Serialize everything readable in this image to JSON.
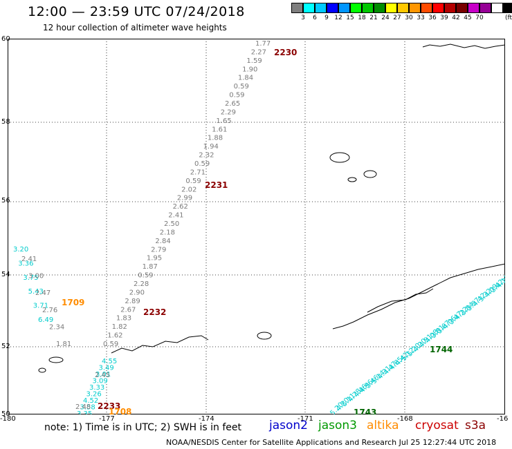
{
  "header": {
    "title": "12:00 — 23:59 UTC 07/24/2018",
    "subtitle": "12 hour collection of altimeter wave heights"
  },
  "scale": {
    "colors": [
      "#7f7f7f",
      "#00ffff",
      "#00c8ff",
      "#0000ff",
      "#0096ff",
      "#00ff00",
      "#00c800",
      "#008c00",
      "#ffff00",
      "#ffc800",
      "#ff9600",
      "#ff4b00",
      "#ff0000",
      "#b40000",
      "#780000",
      "#c800c8",
      "#960096",
      "#ffffff",
      "#000000"
    ],
    "labels": [
      "3",
      "6",
      "9",
      "12",
      "15",
      "18",
      "21",
      "24",
      "27",
      "30",
      "33",
      "36",
      "39",
      "42",
      "45",
      "70"
    ],
    "unit": "(ft)"
  },
  "map": {
    "lat_labels": [
      "60",
      "58",
      "56",
      "54",
      "52",
      "50"
    ],
    "lon_labels": [
      "-180",
      "-177",
      "-174",
      "-171",
      "-168",
      "-16"
    ]
  },
  "tracks": [
    {
      "name": "cryosat s3a",
      "color": "#7a7a7a",
      "values": [
        "1.77",
        "2.27",
        "1.59",
        "1.90",
        "1.84",
        "0.59",
        "0.59",
        "2.65",
        "2.29",
        "1.65",
        "1.61",
        "1.88",
        "1.94",
        "2.32",
        "0.59",
        "2.71",
        "0.59",
        "2.02",
        "2.99",
        "2.62",
        "2.41",
        "2.50",
        "2.18",
        "2.84",
        "2.79",
        "1.95",
        "1.87",
        "0.59",
        "2.28",
        "2.90",
        "2.89",
        "2.67",
        "1.83",
        "1.82",
        "1.62",
        "0.59"
      ]
    },
    {
      "name": "jason2",
      "color": "#00cccc",
      "values": [
        "3.20",
        "3.36",
        "3.75",
        "5.43",
        "3.71",
        "6.49"
      ]
    },
    {
      "name": "cryosat-gray",
      "color": "#7a7a7a",
      "values": [
        "2.41",
        "3.00",
        "2.47",
        "2.76",
        "2.34",
        "1.81"
      ]
    },
    {
      "name": "jason2-south",
      "color": "#00cccc",
      "values": [
        "4.55",
        "3.49",
        "3.01",
        "3.09",
        "3.33",
        "3.26",
        "4.52",
        "3.58",
        "3.35"
      ]
    },
    {
      "name": "gray-south",
      "color": "#7a7a7a",
      "values": [
        "2.45",
        "2.48"
      ]
    },
    {
      "name": "jason2-east",
      "color": "#00cccc",
      "values": [
        "5.20",
        "4.20",
        "5.11",
        "4.78",
        "4.46",
        "4.96",
        "5.46",
        "5.14",
        "4.31",
        "4.47",
        "4.65",
        "4.42",
        "5.12",
        "5.20",
        "4.20",
        "4.51",
        "4.08",
        "3.81",
        "3.67",
        "4.06",
        "3.47",
        "4.22",
        "3.84",
        "3.57",
        "4.42",
        "3.32",
        "4.09",
        "3.42",
        "4.12",
        "2.97"
      ]
    }
  ],
  "time_labels": [
    {
      "text": "2230",
      "color": "#8b0000"
    },
    {
      "text": "2231",
      "color": "#8b0000"
    },
    {
      "text": "2232",
      "color": "#8b0000"
    },
    {
      "text": "2233",
      "color": "#8b0000"
    },
    {
      "text": "1709",
      "color": "#ff8c00"
    },
    {
      "text": "1708",
      "color": "#ff8c00"
    },
    {
      "text": "1744",
      "color": "#006400"
    },
    {
      "text": "1743",
      "color": "#006400"
    }
  ],
  "note": "note: 1) Time is in UTC; 2) SWH is in feet",
  "legend": [
    {
      "text": "jason2",
      "color": "#0000cc"
    },
    {
      "text": "jason3",
      "color": "#009900"
    },
    {
      "text": "altika",
      "color": "#ff8c00"
    },
    {
      "text": "cryosat",
      "color": "#cc0000"
    },
    {
      "text": "s3a",
      "color": "#8b0000"
    }
  ],
  "footer": "NOAA/NESDIS Center for Satellite Applications and Research    Jul 25 12:27:44 UTC 2018"
}
